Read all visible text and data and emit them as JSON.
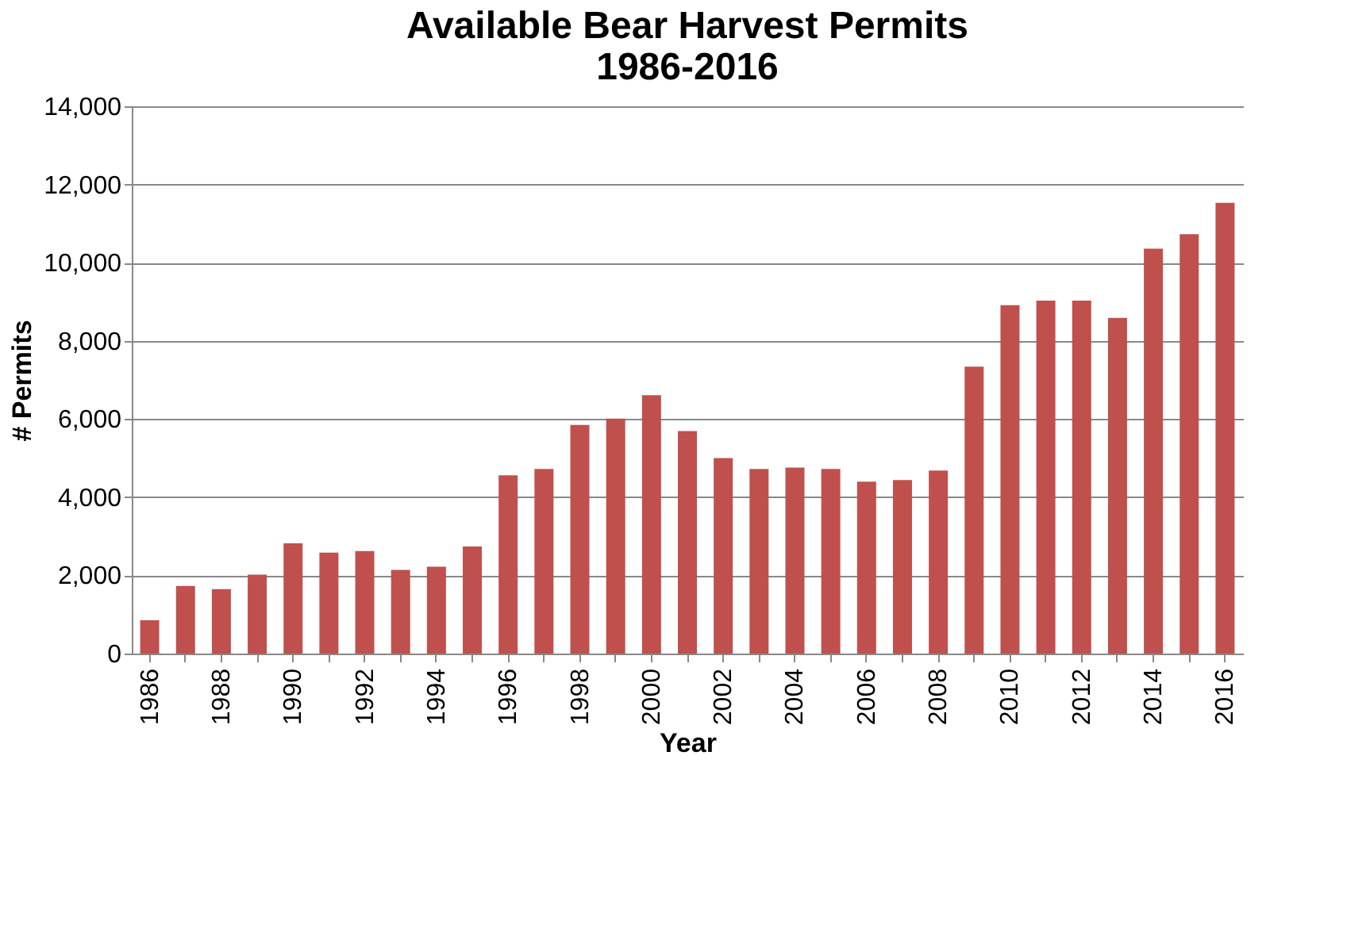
{
  "chart_data": {
    "type": "bar",
    "title": [
      "Available Bear Harvest Permits",
      "1986-2016"
    ],
    "xlabel": "Year",
    "ylabel": "# Permits",
    "categories": [
      "1986",
      null,
      "1988",
      null,
      "1990",
      null,
      "1992",
      null,
      "1994",
      null,
      "1996",
      null,
      "1998",
      null,
      "2000",
      null,
      "2002",
      null,
      "2004",
      null,
      "2006",
      null,
      "2008",
      null,
      "2010",
      null,
      "2012",
      null,
      "2014",
      null,
      "2016"
    ],
    "series": [
      {
        "color": "#c0504d",
        "values": [
          850,
          1730,
          1650,
          2020,
          2820,
          2580,
          2620,
          2140,
          2220,
          2740,
          4560,
          4720,
          5850,
          6010,
          6610,
          5690,
          5000,
          4720,
          4760,
          4720,
          4400,
          4440,
          4680,
          7340,
          8910,
          9030,
          9030,
          8590,
          10360,
          10730,
          11530
        ]
      }
    ],
    "ylim": [
      0,
      14000
    ],
    "yticks": [
      {
        "value": 0,
        "label": "0"
      },
      {
        "value": 2000,
        "label": "2,000"
      },
      {
        "value": 4000,
        "label": "4,000"
      },
      {
        "value": 6000,
        "label": "6,000"
      },
      {
        "value": 8000,
        "label": "8,000"
      },
      {
        "value": 10000,
        "label": "10,000"
      },
      {
        "value": 12000,
        "label": "12,000"
      },
      {
        "value": 14000,
        "label": "14,000"
      }
    ],
    "grid": "y"
  }
}
